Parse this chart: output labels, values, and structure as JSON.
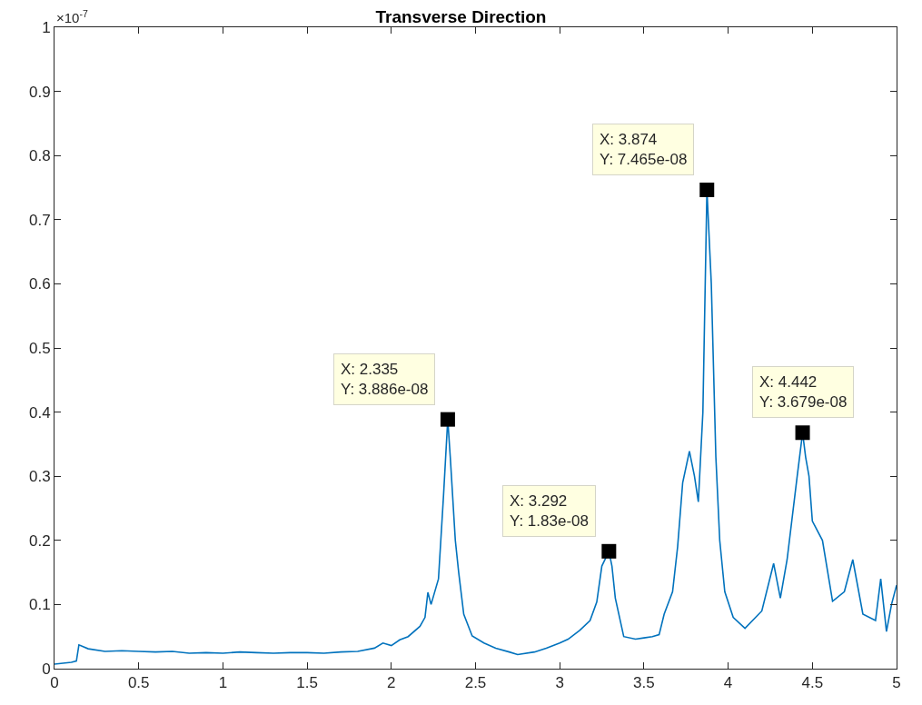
{
  "chart_data": {
    "type": "line",
    "title": "Transverse Direction",
    "x": [
      0,
      0.1,
      0.13,
      0.145,
      0.2,
      0.3,
      0.4,
      0.5,
      0.6,
      0.7,
      0.8,
      0.9,
      1.0,
      1.1,
      1.2,
      1.3,
      1.4,
      1.5,
      1.6,
      1.7,
      1.8,
      1.9,
      1.95,
      2.0,
      2.05,
      2.1,
      2.17,
      2.2,
      2.217,
      2.236,
      2.28,
      2.31,
      2.335,
      2.35,
      2.38,
      2.4,
      2.43,
      2.48,
      2.55,
      2.62,
      2.7,
      2.75,
      2.85,
      2.92,
      3.0,
      3.05,
      3.12,
      3.18,
      3.22,
      3.25,
      3.292,
      3.31,
      3.33,
      3.38,
      3.45,
      3.5,
      3.55,
      3.59,
      3.62,
      3.67,
      3.7,
      3.73,
      3.77,
      3.8,
      3.823,
      3.85,
      3.874,
      3.9,
      3.927,
      3.95,
      3.98,
      4.03,
      4.1,
      4.2,
      4.27,
      4.31,
      4.35,
      4.41,
      4.442,
      4.46,
      4.48,
      4.5,
      4.56,
      4.62,
      4.69,
      4.74,
      4.8,
      4.875,
      4.906,
      4.94,
      4.97,
      5.0
    ],
    "values": [
      0.007,
      0.01,
      0.012,
      0.037,
      0.031,
      0.027,
      0.028,
      0.027,
      0.026,
      0.027,
      0.024,
      0.025,
      0.024,
      0.026,
      0.025,
      0.024,
      0.025,
      0.025,
      0.024,
      0.026,
      0.027,
      0.032,
      0.04,
      0.036,
      0.045,
      0.05,
      0.066,
      0.08,
      0.119,
      0.1,
      0.14,
      0.27,
      0.3886,
      0.33,
      0.2,
      0.15,
      0.085,
      0.051,
      0.04,
      0.032,
      0.026,
      0.022,
      0.026,
      0.032,
      0.04,
      0.046,
      0.06,
      0.075,
      0.104,
      0.16,
      0.183,
      0.16,
      0.11,
      0.05,
      0.046,
      0.048,
      0.05,
      0.053,
      0.085,
      0.12,
      0.19,
      0.29,
      0.339,
      0.3,
      0.26,
      0.4,
      0.7465,
      0.6,
      0.33,
      0.2,
      0.12,
      0.08,
      0.063,
      0.09,
      0.164,
      0.11,
      0.17,
      0.3,
      0.3679,
      0.33,
      0.3,
      0.23,
      0.2,
      0.105,
      0.12,
      0.17,
      0.085,
      0.075,
      0.14,
      0.058,
      0.1,
      0.13
    ],
    "color": "#0072bd",
    "xlim": [
      0,
      5
    ],
    "xticks": [
      0,
      0.5,
      1,
      1.5,
      2,
      2.5,
      3,
      3.5,
      4,
      4.5,
      5
    ],
    "ylim": [
      0,
      1
    ],
    "yticks": [
      0,
      0.1,
      0.2,
      0.3,
      0.4,
      0.5,
      0.6,
      0.7,
      0.8,
      0.9,
      1
    ],
    "grid": false,
    "marker": "none",
    "line_style": "solid",
    "annotations": [
      "×10$^{-7}$",
      {
        "text": "X: 2.335\nY: 3.886e-08",
        "x": 2.335,
        "y": 0.3886
      },
      {
        "text": "X: 3.292\nY: 1.83e-08",
        "x": 3.292,
        "y": 0.183
      },
      {
        "text": "X: 3.874\nY: 7.465e-08",
        "x": 3.874,
        "y": 0.7465
      },
      {
        "text": "X: 4.442\nY: 3.679e-08",
        "x": 4.442,
        "y": 0.3679
      }
    ]
  }
}
